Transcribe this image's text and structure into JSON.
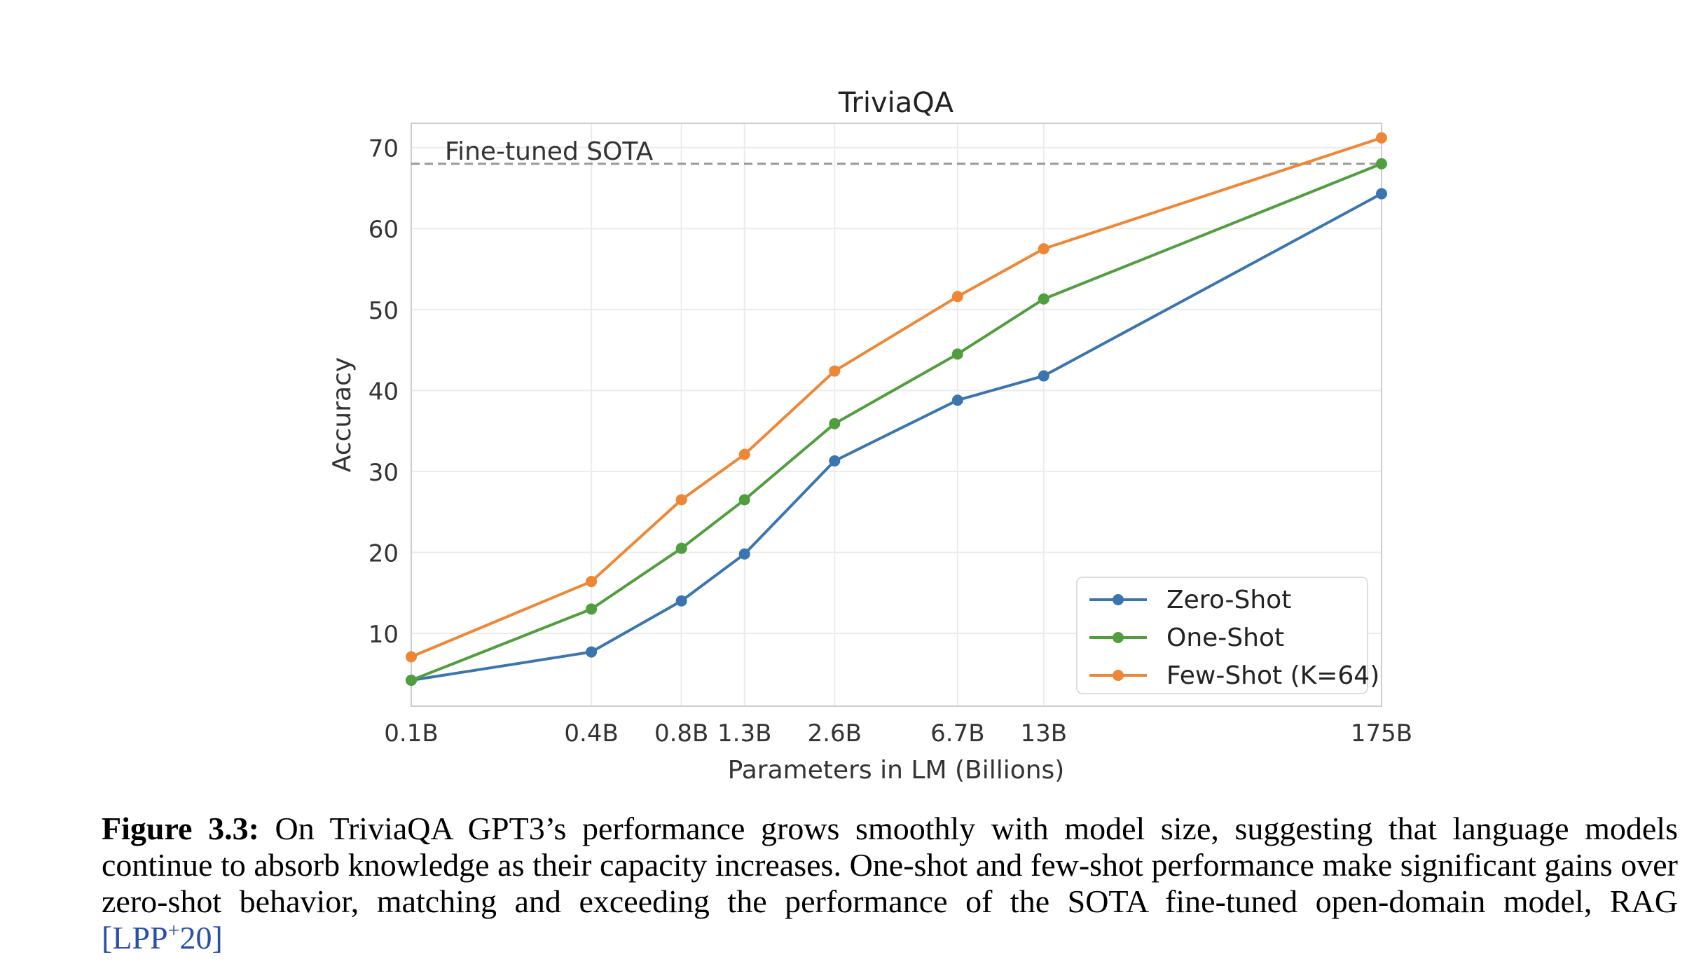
{
  "chart_data": {
    "type": "line",
    "title": "TriviaQA",
    "xlabel": "Parameters in LM (Billions)",
    "ylabel": "Accuracy",
    "categories": [
      "0.1B",
      "0.4B",
      "0.8B",
      "1.3B",
      "2.6B",
      "6.7B",
      "13B",
      "175B"
    ],
    "x_log_billions": [
      0.1,
      0.4,
      0.8,
      1.3,
      2.6,
      6.7,
      13,
      175
    ],
    "ylim": [
      1,
      73
    ],
    "yticks": [
      10,
      20,
      30,
      40,
      50,
      60,
      70
    ],
    "grid": true,
    "legend_position": "lower-right",
    "reference_line": {
      "label": "Fine-tuned SOTA",
      "value": 68.0
    },
    "series": [
      {
        "name": "Zero-Shot",
        "color": "#3b75af",
        "values": [
          4.2,
          7.7,
          14.0,
          19.8,
          31.3,
          38.8,
          41.8,
          64.3
        ]
      },
      {
        "name": "One-Shot",
        "color": "#519e3e",
        "values": [
          4.2,
          13.0,
          20.5,
          26.5,
          35.9,
          44.5,
          51.3,
          68.0
        ]
      },
      {
        "name": "Few-Shot (K=64)",
        "color": "#ef8636",
        "values": [
          7.1,
          16.4,
          26.5,
          32.1,
          42.4,
          51.6,
          57.5,
          71.2
        ]
      }
    ]
  },
  "caption": {
    "label": "Figure 3.3:",
    "text": " On TriviaQA GPT3’s performance grows smoothly with model size, suggesting that language models continue to absorb knowledge as their capacity increases. One-shot and few-shot performance make significant gains over zero-shot behavior, matching and exceeding the performance of the SOTA fine-tuned open-domain model, RAG ",
    "citation_open": "[",
    "citation_main": "LPP",
    "citation_sup": "+",
    "citation_year": "20",
    "citation_close": "]"
  }
}
